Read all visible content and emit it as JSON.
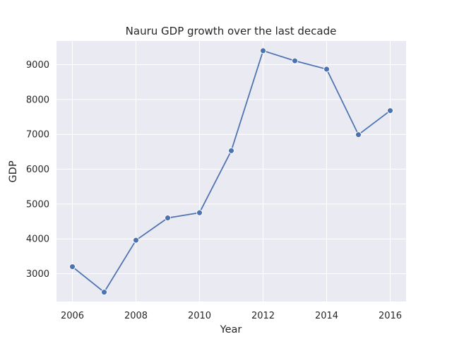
{
  "chart_data": {
    "type": "line",
    "title": "Nauru GDP growth over the last decade",
    "xlabel": "Year",
    "ylabel": "GDP",
    "x": [
      2006,
      2007,
      2008,
      2009,
      2010,
      2011,
      2012,
      2013,
      2014,
      2015,
      2016
    ],
    "series": [
      {
        "name": "GDP",
        "values": [
          3200,
          2470,
          3960,
          4600,
          4750,
          6530,
          9400,
          9110,
          8870,
          6990,
          7680
        ]
      }
    ],
    "xlim": [
      2005.5,
      2016.5
    ],
    "ylim": [
      2200,
      9680
    ],
    "xticks": [
      2006,
      2008,
      2010,
      2012,
      2014,
      2016
    ],
    "yticks": [
      3000,
      4000,
      5000,
      6000,
      7000,
      8000,
      9000
    ],
    "grid": true,
    "colors": {
      "background": "#eaeaf2",
      "grid": "#ffffff",
      "line": "#4c72b0",
      "marker": "#4c72b0",
      "marker_edge": "#ffffff"
    }
  }
}
